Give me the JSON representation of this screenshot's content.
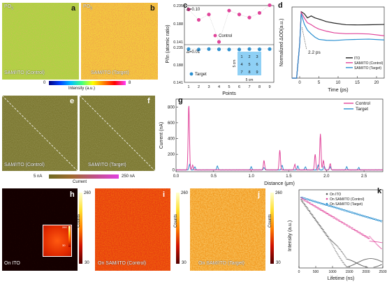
{
  "panels": {
    "a": {
      "letter": "a",
      "top_left": "PO",
      "subscript": "3",
      "label": "SAM/ITO (Control)"
    },
    "b": {
      "letter": "b",
      "top_left": "PO",
      "subscript": "3",
      "label": "SAM/ITO (Target)"
    },
    "ab_colorbar": {
      "min": "0",
      "max": "8",
      "label": "Intensity (a.u.)"
    },
    "e": {
      "letter": "e",
      "label": "SAM/ITO (Control)"
    },
    "f": {
      "letter": "f",
      "label": "SAM/ITO (Target)"
    },
    "ef_colorbar": {
      "min": "5 nA",
      "max": "250 nA",
      "label": "Current"
    },
    "h": {
      "letter": "h",
      "label": "On ITO",
      "inset_ticks": [
        "260",
        "30"
      ]
    },
    "i": {
      "letter": "i",
      "label": "On SAM/ITO (Control)"
    },
    "j": {
      "letter": "j",
      "label": "On SAM/ITO (Target)"
    },
    "hij_colorbar": {
      "max": "260",
      "min": "30",
      "label": "Counts"
    },
    "c_inset": {
      "grid": [
        "1",
        "2",
        "3",
        "4",
        "5",
        "6",
        "7",
        "8",
        "9"
      ],
      "vlabel": "5 cm",
      "hlabel": "5 cm"
    },
    "watermark": "© 大数据科学"
  },
  "chart_data": [
    {
      "id": "c",
      "letter": "c",
      "type": "scatter",
      "xlabel": "Points",
      "ylabel": "P/In (atomic ratio)",
      "x_ticks": [
        "1",
        "2",
        "3",
        "4",
        "5",
        "6",
        "7",
        "8",
        "9"
      ],
      "series": [
        {
          "name": "Control",
          "color": "#e0449a",
          "values": [
            0.225,
            0.198,
            0.212,
            0.141,
            0.222,
            0.212,
            0.204,
            0.216,
            0.236
          ]
        },
        {
          "name": "Target",
          "color": "#2a8fd0",
          "values": [
            0.224,
            0.222,
            0.224,
            0.223,
            0.222,
            0.222,
            0.224,
            0.223,
            0.224
          ]
        }
      ],
      "top_y_ticks": [
        "0.235",
        "0.188",
        "0.141"
      ],
      "bottom_y_ticks": [
        "0.235",
        "0.188",
        "0.141"
      ],
      "top_annotation": "Δ=0.10",
      "bottom_annotation": "Δ=0.01"
    },
    {
      "id": "d",
      "letter": "d",
      "type": "line",
      "xlabel": "Time (ps)",
      "ylabel": "Normalized ΔOD(a.u.)",
      "x_ticks": [
        "0",
        "5",
        "10",
        "15",
        "20"
      ],
      "xlim": [
        -2,
        22
      ],
      "ylim": [
        0,
        1.05
      ],
      "annotation": "2.2 ps",
      "series": [
        {
          "name": "ITO",
          "color": "#222222",
          "points": [
            [
              -2,
              0
            ],
            [
              -0.8,
              0
            ],
            [
              0,
              0.5
            ],
            [
              0.4,
              0.98
            ],
            [
              1.2,
              0.96
            ],
            [
              2,
              0.9
            ],
            [
              3,
              0.92
            ],
            [
              4,
              0.88
            ],
            [
              5,
              0.86
            ],
            [
              7,
              0.83
            ],
            [
              9,
              0.82
            ],
            [
              12,
              0.8
            ],
            [
              15,
              0.79
            ],
            [
              18,
              0.78
            ],
            [
              22,
              0.78
            ]
          ]
        },
        {
          "name": "SAM/ITO (Control)",
          "color": "#e0449a",
          "points": [
            [
              -2,
              0
            ],
            [
              -0.8,
              0
            ],
            [
              0,
              0.5
            ],
            [
              0.4,
              0.97
            ],
            [
              1.2,
              0.9
            ],
            [
              2,
              0.82
            ],
            [
              3,
              0.78
            ],
            [
              4,
              0.74
            ],
            [
              5,
              0.72
            ],
            [
              7,
              0.7
            ],
            [
              9,
              0.68
            ],
            [
              12,
              0.66
            ],
            [
              15,
              0.65
            ],
            [
              18,
              0.64
            ],
            [
              22,
              0.62
            ]
          ]
        },
        {
          "name": "SAM/ITO (Target)",
          "color": "#2a8fd0",
          "points": [
            [
              -2,
              0
            ],
            [
              -0.8,
              0
            ],
            [
              0,
              0.5
            ],
            [
              0.4,
              0.95
            ],
            [
              1.2,
              0.8
            ],
            [
              2,
              0.7
            ],
            [
              3,
              0.64
            ],
            [
              4,
              0.6
            ],
            [
              5,
              0.58
            ],
            [
              7,
              0.57
            ],
            [
              9,
              0.56
            ],
            [
              12,
              0.56
            ],
            [
              15,
              0.56
            ],
            [
              18,
              0.57
            ],
            [
              22,
              0.57
            ]
          ]
        }
      ]
    },
    {
      "id": "g",
      "letter": "g",
      "type": "line",
      "xlabel": "Distance (μm)",
      "ylabel": "Current (nA)",
      "x_ticks": [
        "0.0",
        "0.5",
        "1.0",
        "1.5",
        "2.0",
        "2.5"
      ],
      "y_ticks": [
        "800",
        "600",
        "400",
        "200",
        "0"
      ],
      "xlim": [
        0,
        2.75
      ],
      "ylim": [
        -20,
        900
      ],
      "series": [
        {
          "name": "Control",
          "color": "#e0449a",
          "peaks": [
            [
              0.17,
              830
            ],
            [
              0.22,
              60
            ],
            [
              1.17,
              120
            ],
            [
              1.38,
              250
            ],
            [
              1.58,
              70
            ],
            [
              1.85,
              200
            ],
            [
              1.92,
              460
            ],
            [
              1.96,
              120
            ],
            [
              2.05,
              80
            ]
          ]
        },
        {
          "name": "Target",
          "color": "#2a8fd0",
          "peaks": [
            [
              0.18,
              70
            ],
            [
              0.25,
              40
            ],
            [
              0.55,
              50
            ],
            [
              1.0,
              40
            ],
            [
              1.17,
              30
            ],
            [
              1.41,
              60
            ],
            [
              1.62,
              50
            ],
            [
              1.72,
              40
            ],
            [
              1.89,
              60
            ],
            [
              1.97,
              50
            ],
            [
              2.05,
              40
            ],
            [
              2.27,
              40
            ],
            [
              2.43,
              30
            ]
          ]
        }
      ]
    },
    {
      "id": "k",
      "letter": "k",
      "type": "scatter",
      "xlabel": "Lifetime (ns)",
      "ylabel": "Intensity (a.u.)",
      "x_ticks": [
        "0",
        "500",
        "1000",
        "1500",
        "2000",
        "2500"
      ],
      "xlim": [
        0,
        2500
      ],
      "series": [
        {
          "name": "On ITO",
          "color": "#555555",
          "tau": 150
        },
        {
          "name": "On SAM/ITO (Control)",
          "color": "#e0449a",
          "tau": 350
        },
        {
          "name": "On SAM/ITO (Target)",
          "color": "#2a8fd0",
          "tau": 700
        }
      ]
    }
  ]
}
